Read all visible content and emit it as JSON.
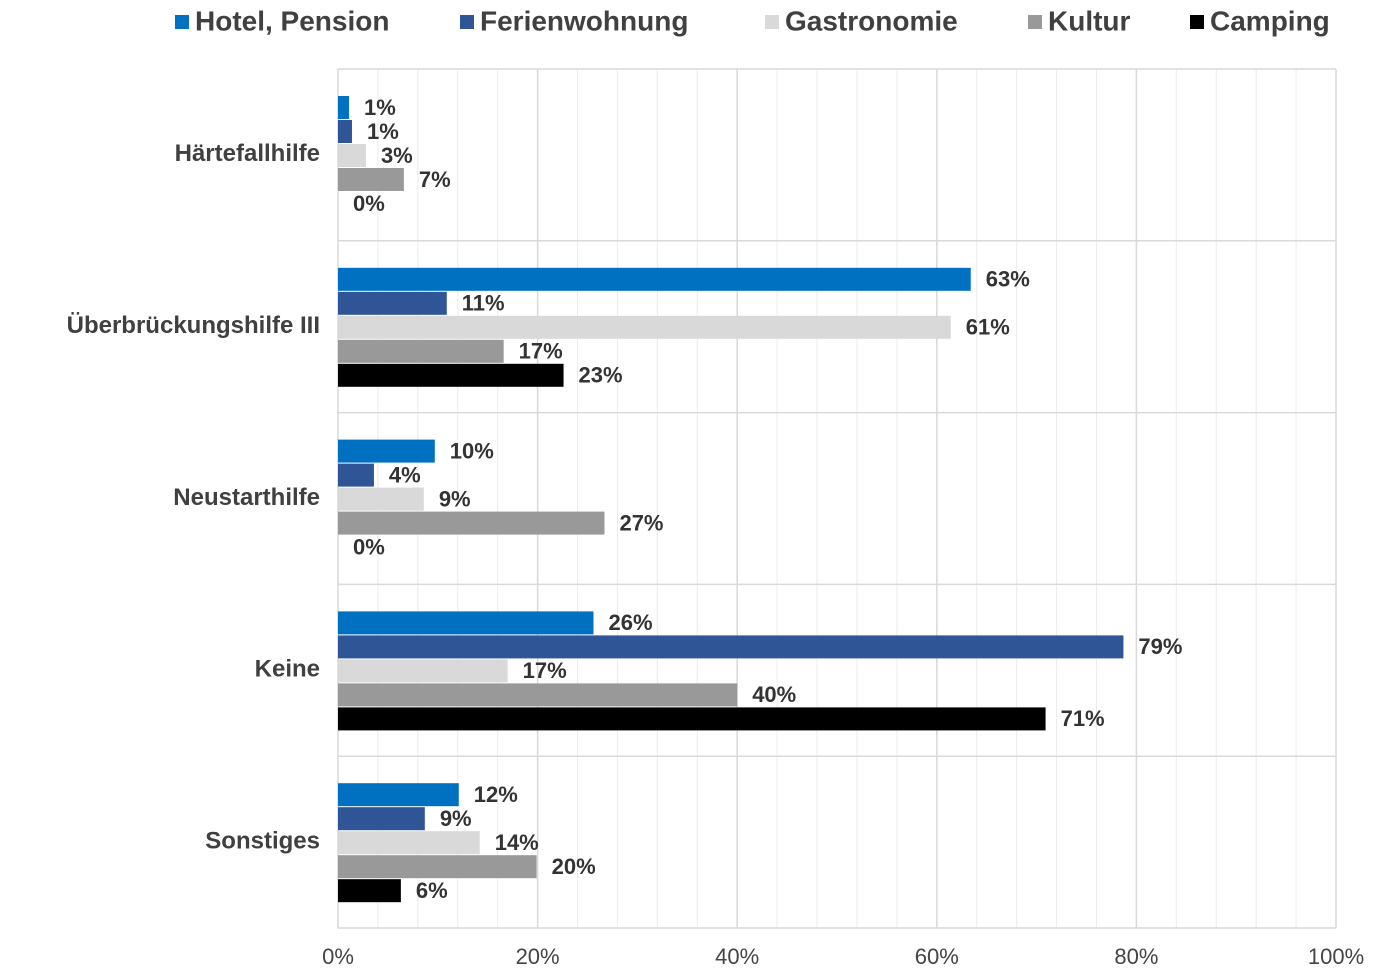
{
  "chart_data": {
    "type": "hbar",
    "categories": [
      "Härtefallhilfe",
      "Überbrückungshilfe III",
      "Neustarthilfe",
      "Keine",
      "Sonstiges"
    ],
    "series": [
      {
        "name": "Hotel, Pension",
        "color": "#0070c0",
        "values": [
          1.1,
          63.4,
          9.7,
          25.6,
          12.1
        ],
        "value_labels": [
          "1%",
          "63%",
          "10%",
          "26%",
          "12%"
        ]
      },
      {
        "name": "Ferienwohnung",
        "color": "#2f5597",
        "values": [
          1.4,
          10.9,
          3.6,
          78.7,
          8.7
        ],
        "value_labels": [
          "1%",
          "11%",
          "4%",
          "79%",
          "9%"
        ]
      },
      {
        "name": "Gastronomie",
        "color": "#d9d9d9",
        "values": [
          2.8,
          61.4,
          8.6,
          17.0,
          14.2
        ],
        "value_labels": [
          "3%",
          "61%",
          "9%",
          "17%",
          "14%"
        ]
      },
      {
        "name": "Kultur",
        "color": "#999999",
        "values": [
          6.6,
          16.6,
          26.7,
          40.0,
          19.9
        ],
        "value_labels": [
          "7%",
          "17%",
          "27%",
          "40%",
          "20%"
        ]
      },
      {
        "name": "Camping",
        "color": "#000000",
        "values": [
          0,
          22.6,
          0,
          70.9,
          6.3
        ],
        "value_labels": [
          "0%",
          "23%",
          "0%",
          "71%",
          "6%"
        ]
      }
    ],
    "xlim": [
      0,
      100
    ],
    "xticks": [
      {
        "value": 0,
        "label": "0%"
      },
      {
        "value": 20,
        "label": "20%"
      },
      {
        "value": 40,
        "label": "40%"
      },
      {
        "value": 60,
        "label": "60%"
      },
      {
        "value": 80,
        "label": "80%"
      },
      {
        "value": 100,
        "label": "100%"
      }
    ],
    "minor_xticks": [
      4,
      8,
      12,
      16,
      24,
      28,
      32,
      36,
      44,
      48,
      52,
      56,
      64,
      68,
      72,
      76,
      84,
      88,
      92,
      96
    ],
    "grid": true,
    "legend": "top"
  }
}
